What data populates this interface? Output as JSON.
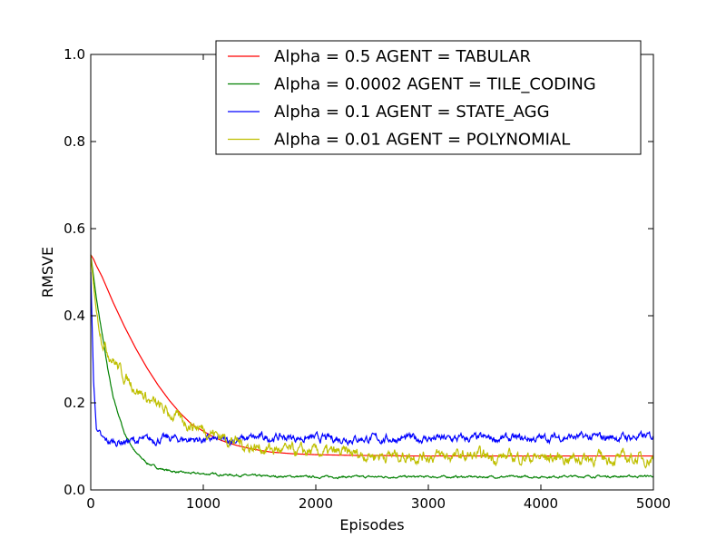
{
  "chart_data": {
    "type": "line",
    "title": "",
    "xlabel": "Episodes",
    "ylabel": "RMSVE",
    "xlim": [
      0,
      5000
    ],
    "ylim": [
      0.0,
      1.0
    ],
    "xticks": [
      0,
      1000,
      2000,
      3000,
      4000,
      5000
    ],
    "xtick_labels": [
      "0",
      "1000",
      "2000",
      "3000",
      "4000",
      "5000"
    ],
    "yticks": [
      0.0,
      0.2,
      0.4,
      0.6,
      0.8,
      1.0
    ],
    "ytick_labels": [
      "0.0",
      "0.2",
      "0.4",
      "0.6",
      "0.8",
      "1.0"
    ],
    "grid": false,
    "legend_position": "top-right",
    "x": [
      0,
      25,
      50,
      100,
      150,
      200,
      300,
      400,
      500,
      600,
      700,
      800,
      900,
      1000,
      1100,
      1200,
      1300,
      1400,
      1500,
      1600,
      1700,
      1800,
      1900,
      2000,
      2200,
      2400,
      2600,
      2800,
      3000,
      3200,
      3400,
      3600,
      3800,
      4000,
      4200,
      4400,
      4600,
      4800,
      5000
    ],
    "series": [
      {
        "name": "Alpha = 0.5 AGENT = TABULAR",
        "color": "#ff0000",
        "noise": 0.0,
        "values": [
          0.54,
          0.53,
          0.515,
          0.49,
          0.46,
          0.43,
          0.375,
          0.325,
          0.28,
          0.24,
          0.205,
          0.175,
          0.15,
          0.135,
          0.12,
          0.11,
          0.102,
          0.096,
          0.091,
          0.087,
          0.085,
          0.083,
          0.082,
          0.081,
          0.08,
          0.079,
          0.079,
          0.078,
          0.078,
          0.078,
          0.078,
          0.078,
          0.078,
          0.078,
          0.078,
          0.078,
          0.078,
          0.078,
          0.078
        ]
      },
      {
        "name": "Alpha = 0.0002 AGENT = TILE_CODING",
        "color": "#008000",
        "noise": 0.002,
        "values": [
          0.54,
          0.49,
          0.44,
          0.36,
          0.28,
          0.21,
          0.13,
          0.085,
          0.062,
          0.05,
          0.044,
          0.04,
          0.038,
          0.037,
          0.036,
          0.035,
          0.034,
          0.033,
          0.032,
          0.031,
          0.031,
          0.031,
          0.03,
          0.03,
          0.03,
          0.03,
          0.03,
          0.03,
          0.03,
          0.03,
          0.03,
          0.03,
          0.03,
          0.03,
          0.031,
          0.031,
          0.031,
          0.031,
          0.032
        ]
      },
      {
        "name": "Alpha = 0.1 AGENT = STATE_AGG",
        "color": "#0000ff",
        "noise": 0.008,
        "values": [
          0.5,
          0.25,
          0.14,
          0.115,
          0.11,
          0.11,
          0.112,
          0.113,
          0.114,
          0.116,
          0.118,
          0.117,
          0.116,
          0.116,
          0.115,
          0.113,
          0.115,
          0.118,
          0.12,
          0.12,
          0.121,
          0.12,
          0.119,
          0.118,
          0.118,
          0.118,
          0.117,
          0.118,
          0.118,
          0.117,
          0.118,
          0.118,
          0.117,
          0.118,
          0.122,
          0.12,
          0.121,
          0.121,
          0.122
        ]
      },
      {
        "name": "Alpha = 0.01 AGENT = POLYNOMIAL",
        "color": "#bfbf00",
        "noise": 0.012,
        "values": [
          0.54,
          0.47,
          0.41,
          0.35,
          0.32,
          0.3,
          0.26,
          0.235,
          0.21,
          0.19,
          0.175,
          0.16,
          0.15,
          0.14,
          0.13,
          0.12,
          0.11,
          0.1,
          0.097,
          0.094,
          0.09,
          0.088,
          0.087,
          0.086,
          0.084,
          0.082,
          0.08,
          0.079,
          0.078,
          0.077,
          0.077,
          0.076,
          0.075,
          0.074,
          0.074,
          0.073,
          0.073,
          0.072,
          0.072
        ]
      }
    ]
  }
}
